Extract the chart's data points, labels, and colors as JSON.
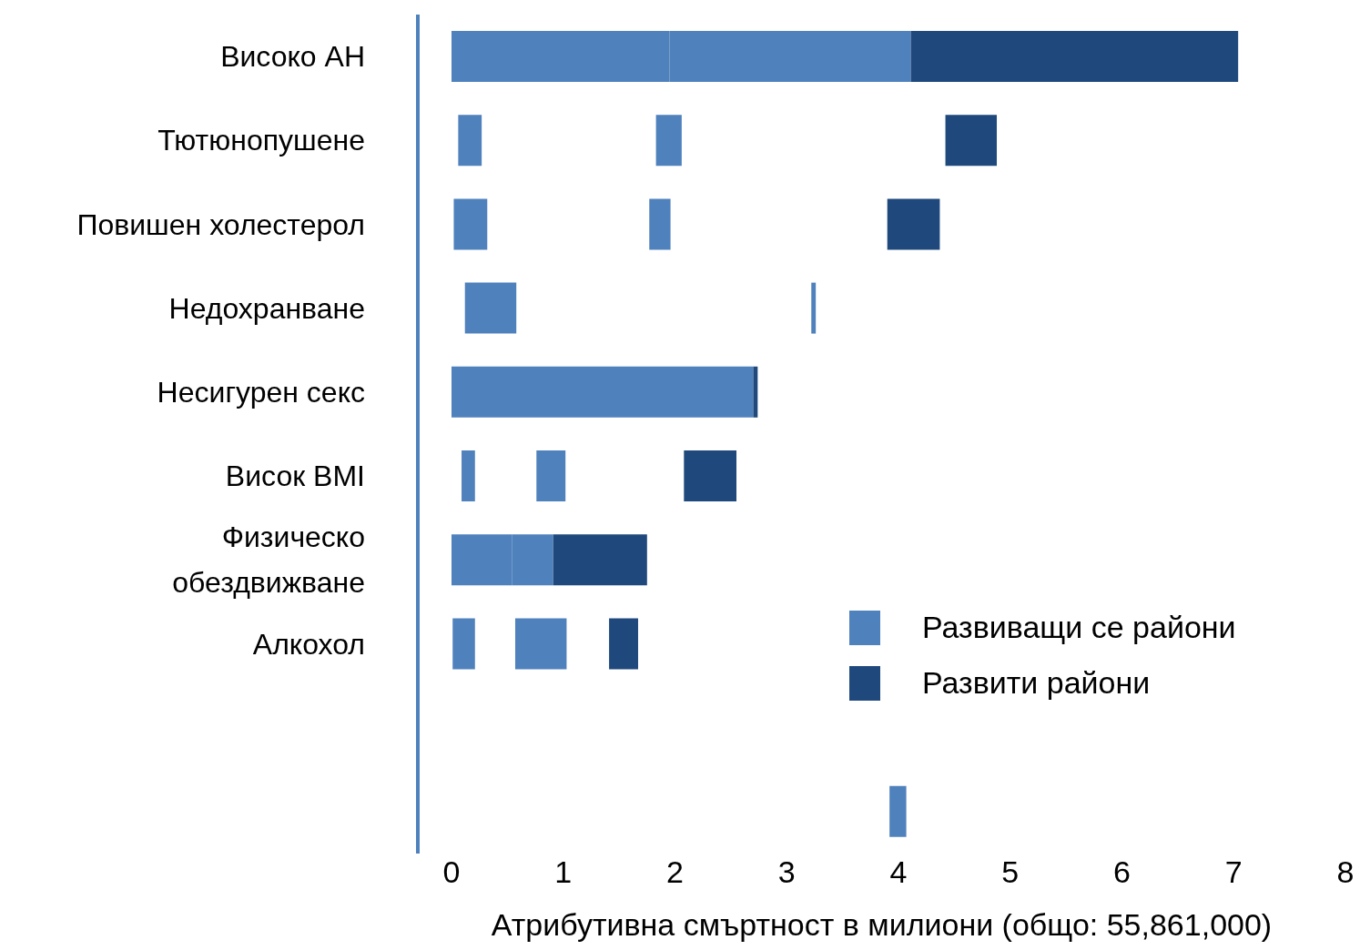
{
  "chart_data": {
    "type": "bar",
    "orientation": "horizontal",
    "xlabel": "Атрибутивна смъртност в милиони (общо: 55,861,000)",
    "categories": [
      "Високо АН",
      "Тютюнопушене",
      "Повишен холестерол",
      "Недохранване",
      "Несигурен секс",
      "Висок BMI",
      "Физическо обездвижване",
      "Алкохол",
      null,
      null
    ],
    "series": [
      {
        "name": "Развиващи се райони",
        "color": "#4f81bd",
        "values": [
          1.95,
          0.21,
          0.3,
          0.46,
          2.7,
          0.12,
          0.54,
          0.2,
          null,
          0.15
        ],
        "base": [
          0,
          0.06,
          0.02,
          0.12,
          0,
          0.09,
          0,
          0.01,
          null,
          3.92
        ]
      },
      {
        "color": "#4f81bd",
        "values": [
          2.16,
          0.23,
          0.19,
          0.04,
          null,
          0.26,
          0.37,
          0.46,
          null,
          null
        ],
        "base": [
          1.95,
          1.83,
          1.77,
          3.22,
          null,
          0.76,
          0.54,
          0.57,
          null,
          null
        ]
      },
      {
        "name": "Развити райони",
        "color": "#1f497d",
        "values": [
          2.93,
          0.46,
          0.47,
          null,
          0.04,
          0.47,
          0.84,
          0.26,
          null,
          null
        ],
        "base": [
          4.11,
          4.42,
          3.9,
          null,
          2.7,
          2.08,
          0.91,
          1.41,
          null,
          null
        ]
      }
    ],
    "xlim": [
      0,
      8
    ],
    "xticks": [
      0,
      1,
      2,
      3,
      4,
      5,
      6,
      7,
      8
    ],
    "grid": false,
    "legend": "bottom right"
  }
}
